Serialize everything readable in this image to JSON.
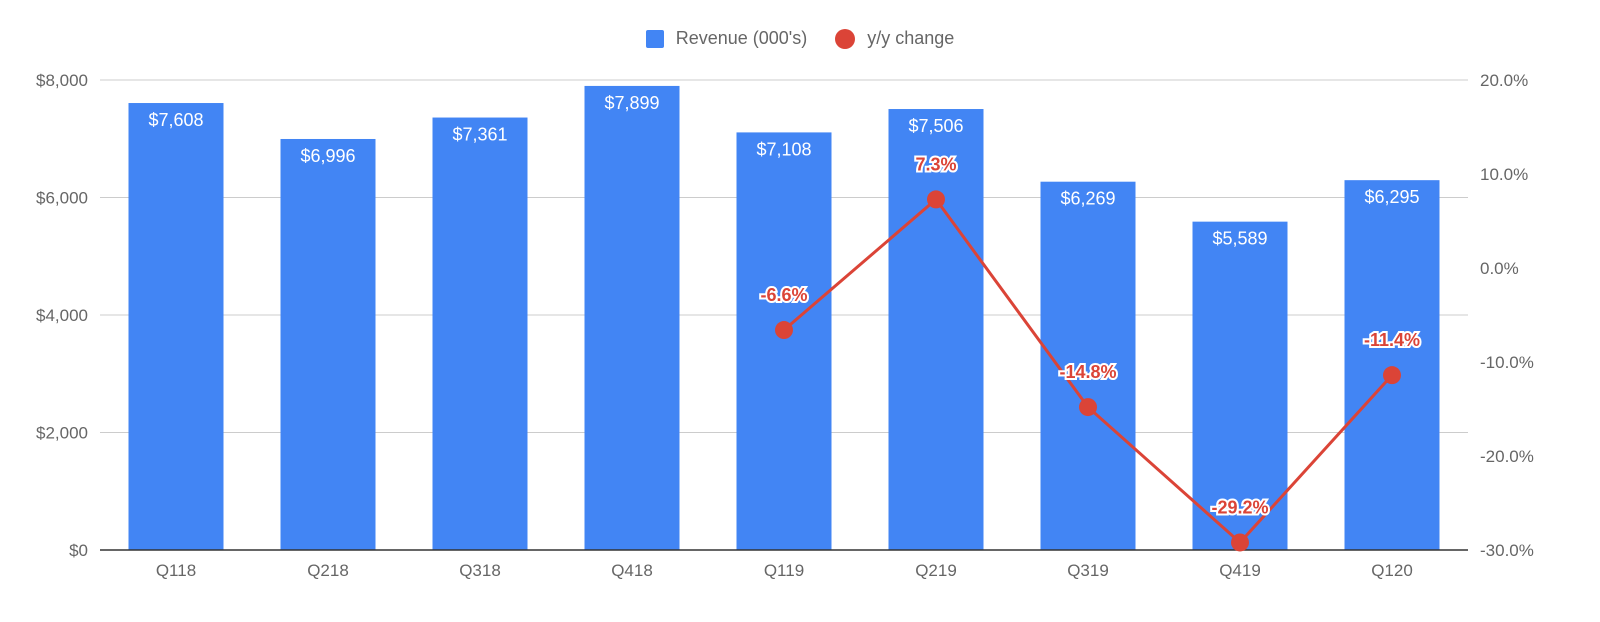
{
  "chart_data": {
    "type": "bar",
    "categories": [
      "Q118",
      "Q218",
      "Q318",
      "Q418",
      "Q119",
      "Q219",
      "Q319",
      "Q419",
      "Q120"
    ],
    "series": [
      {
        "name": "Revenue (000's)",
        "type": "bar",
        "axis": "left",
        "color": "#4285f4",
        "values": [
          7608,
          6996,
          7361,
          7899,
          7108,
          7506,
          6269,
          5589,
          6295
        ],
        "labels": [
          "$7,608",
          "$6,996",
          "$7,361",
          "$7,899",
          "$7,108",
          "$7,506",
          "$6,269",
          "$5,589",
          "$6,295"
        ]
      },
      {
        "name": "y/y change",
        "type": "line",
        "axis": "right",
        "color": "#db4437",
        "values": [
          null,
          null,
          null,
          null,
          -6.6,
          7.3,
          -14.8,
          -29.2,
          -11.4
        ],
        "labels": [
          "",
          "",
          "",
          "",
          "-6.6%",
          "7.3%",
          "-14.8%",
          "-29.2%",
          "-11.4%"
        ]
      }
    ],
    "y_left": {
      "ylim": [
        0,
        8000
      ],
      "ticks": [
        0,
        2000,
        4000,
        6000,
        8000
      ],
      "tick_labels": [
        "$0",
        "$2,000",
        "$4,000",
        "$6,000",
        "$8,000"
      ]
    },
    "y_right": {
      "ylim": [
        -30,
        20
      ],
      "ticks": [
        -30,
        -20,
        -10,
        0,
        10,
        20
      ],
      "tick_labels": [
        "-30.0%",
        "-20.0%",
        "-10.0%",
        "0.0%",
        "10.0%",
        "20.0%"
      ]
    },
    "grid": true,
    "legend_position": "top-center"
  }
}
